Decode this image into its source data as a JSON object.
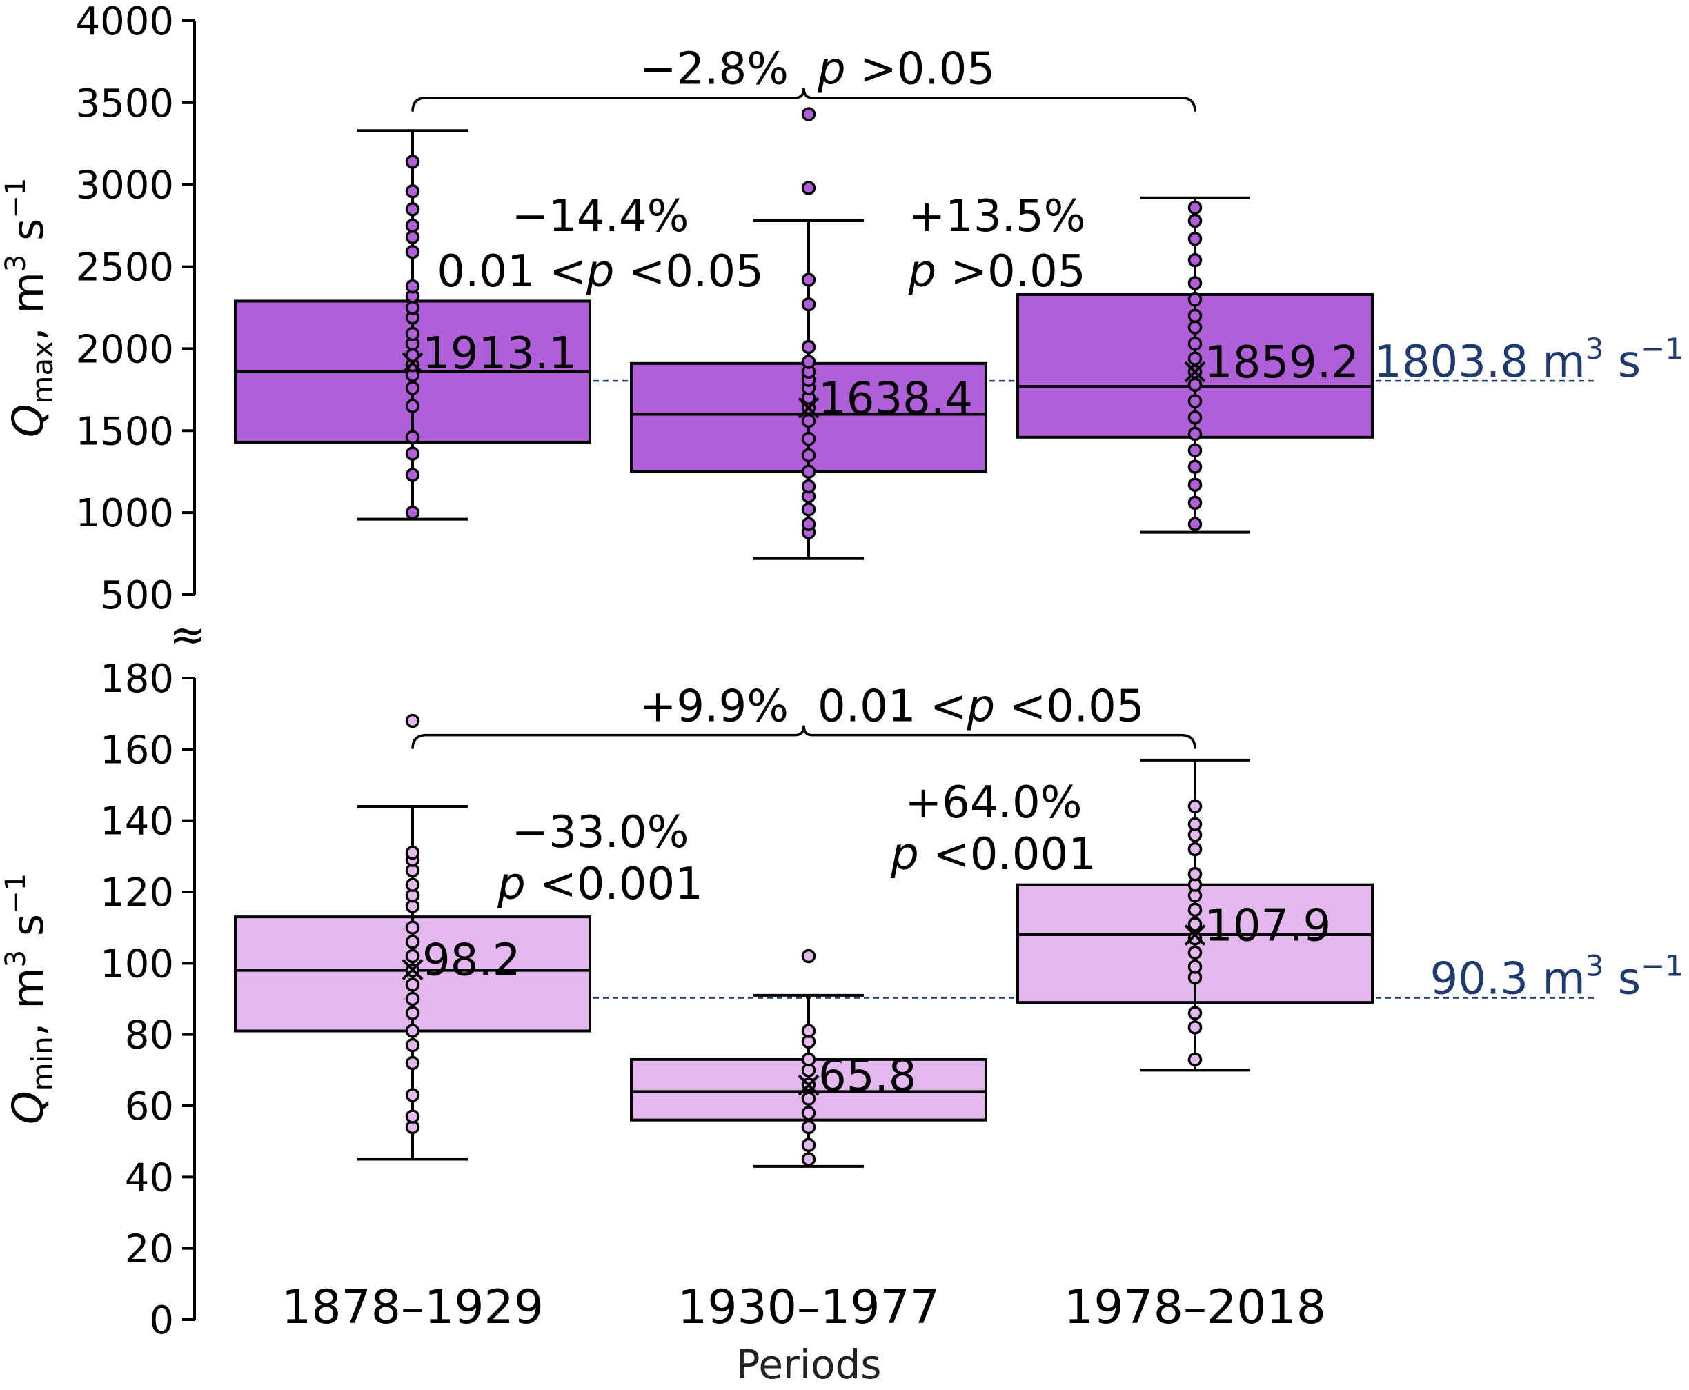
{
  "chart_data": [
    {
      "type": "box",
      "panel": "top",
      "ylabel_main": "Q",
      "ylabel_sub": "max",
      "ylabel_unit": ", m",
      "ylabel_unit_sup": "3",
      "ylabel_unit_s": " s",
      "ylabel_unit_s_sup": "−1",
      "ylim": [
        500,
        4000
      ],
      "yticks": [
        500,
        1000,
        1500,
        2000,
        2500,
        3000,
        3500,
        4000
      ],
      "box_color": "#b15fd8",
      "reference": {
        "value": 1803.8,
        "label": "1803.8 m",
        "label_sup": "3",
        "label_s": " s",
        "label_s_sup": "−1",
        "color": "#1f3a6e"
      },
      "boxes": [
        {
          "category": "1878–1929",
          "whisker_low": 960,
          "q1": 1430,
          "median": 1860,
          "q3": 2290,
          "whisker_high": 3330,
          "mean": 1913.1,
          "mean_label": "1913.1",
          "points": [
            1000,
            1230,
            1360,
            1460,
            1650,
            1760,
            1840,
            1900,
            1960,
            2030,
            2090,
            2190,
            2250,
            2320,
            2380,
            2590,
            2680,
            2750,
            2850,
            2960,
            3140
          ]
        },
        {
          "category": "1930–1977",
          "whisker_low": 720,
          "q1": 1250,
          "median": 1600,
          "q3": 1910,
          "whisker_high": 2780,
          "mean": 1638.4,
          "mean_label": "1638.4",
          "points": [
            880,
            930,
            1020,
            1100,
            1160,
            1250,
            1350,
            1450,
            1560,
            1640,
            1700,
            1760,
            1810,
            1860,
            1920,
            2010,
            2270,
            2420,
            2980,
            3430
          ]
        },
        {
          "category": "1978–2018",
          "whisker_low": 880,
          "q1": 1460,
          "median": 1770,
          "q3": 2330,
          "whisker_high": 2920,
          "mean": 1859.2,
          "mean_label": "1859.2",
          "points": [
            930,
            1060,
            1170,
            1280,
            1380,
            1480,
            1580,
            1680,
            1780,
            1860,
            1940,
            2030,
            2130,
            2200,
            2300,
            2400,
            2540,
            2670,
            2780,
            2860
          ]
        }
      ],
      "comparisons": [
        {
          "type": "bracket",
          "from": 0,
          "to": 2,
          "level": 3530,
          "label": "−2.8%",
          "p_label": "p",
          "p_rest": " >0.05"
        },
        {
          "type": "text",
          "between": [
            0,
            1
          ],
          "line1": "−14.4%",
          "line2_pre": "0.01 <",
          "line2_p": "p",
          "line2_post": " <0.05"
        },
        {
          "type": "text",
          "between": [
            1,
            2
          ],
          "line1": "+13.5%",
          "line2_pre": "",
          "line2_p": "p",
          "line2_post": " >0.05"
        }
      ]
    },
    {
      "type": "box",
      "panel": "bottom",
      "ylabel_main": "Q",
      "ylabel_sub": "min",
      "ylabel_unit": ", m",
      "ylabel_unit_sup": "3",
      "ylabel_unit_s": " s",
      "ylabel_unit_s_sup": "−1",
      "ylim": [
        0,
        180
      ],
      "yticks": [
        0,
        20,
        40,
        60,
        80,
        100,
        120,
        140,
        160,
        180
      ],
      "box_color": "#e2b8ee",
      "reference": {
        "value": 90.3,
        "label": "90.3 m",
        "label_sup": "3",
        "label_s": " s",
        "label_s_sup": "−1",
        "color": "#1f3a6e"
      },
      "boxes": [
        {
          "category": "1878–1929",
          "whisker_low": 45,
          "q1": 81,
          "median": 98,
          "q3": 113,
          "whisker_high": 144,
          "mean": 98.2,
          "mean_label": "98.2",
          "points": [
            54,
            57,
            63,
            72,
            77,
            81,
            86,
            90,
            94,
            98,
            102,
            106,
            110,
            116,
            119,
            122,
            126,
            129,
            131,
            168
          ]
        },
        {
          "category": "1930–1977",
          "whisker_low": 43,
          "q1": 56,
          "median": 64,
          "q3": 73,
          "whisker_high": 91,
          "mean": 65.8,
          "mean_label": "65.8",
          "points": [
            45,
            49,
            54,
            58,
            62,
            66,
            70,
            73,
            78,
            81,
            102
          ]
        },
        {
          "category": "1978–2018",
          "whisker_low": 70,
          "q1": 89,
          "median": 108,
          "q3": 122,
          "whisker_high": 157,
          "mean": 107.9,
          "mean_label": "107.9",
          "points": [
            73,
            82,
            86,
            96,
            99,
            103,
            107,
            111,
            115,
            119,
            122,
            125,
            132,
            136,
            139,
            144
          ]
        }
      ],
      "comparisons": [
        {
          "type": "bracket",
          "from": 0,
          "to": 2,
          "level": 164,
          "label": "+9.9%",
          "p_label_pre": "0.01 <",
          "p_label": "p",
          "p_rest": " <0.05"
        },
        {
          "type": "text",
          "between": [
            0,
            1
          ],
          "line1": "−33.0%",
          "line2_pre": "",
          "line2_p": "p",
          "line2_post": " <0.001"
        },
        {
          "type": "text",
          "between": [
            1,
            2
          ],
          "line1": "+64.0%",
          "line2_pre": "",
          "line2_p": "p",
          "line2_post": " <0.001"
        }
      ]
    }
  ],
  "categories": [
    "1878–1929",
    "1930–1977",
    "1978–2018"
  ],
  "xlabel": "Periods",
  "axis_break_symbol": "≈",
  "colors": {
    "axis": "#000000",
    "reference": "#1f3a6e",
    "top_box": "#b15fd8",
    "bottom_box": "#e2b8ee"
  }
}
